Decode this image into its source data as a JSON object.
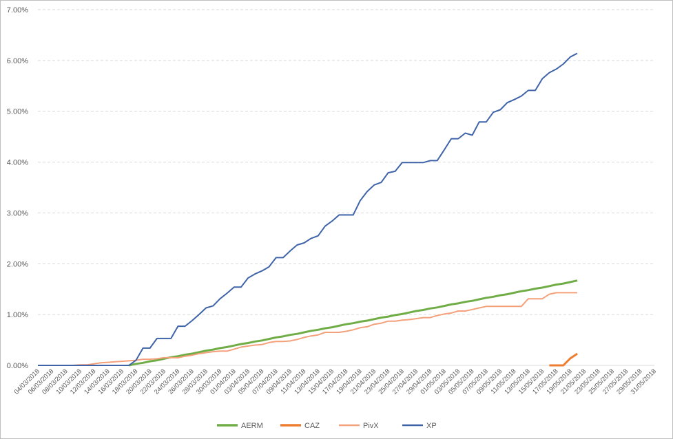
{
  "chart_data": {
    "type": "line",
    "categories": [
      "04/03/2018",
      null,
      "06/03/2018",
      null,
      "08/03/2018",
      null,
      "10/03/2018",
      null,
      "12/03/2018",
      null,
      "14/03/2018",
      null,
      "16/03/2018",
      null,
      "18/03/2018",
      null,
      "20/03/2018",
      null,
      "22/03/2018",
      null,
      "24/03/2018",
      null,
      "26/03/2018",
      null,
      "28/03/2018",
      null,
      "30/03/2018",
      null,
      "01/04/2018",
      null,
      "03/04/2018",
      null,
      "05/04/2018",
      null,
      "07/04/2018",
      null,
      "09/04/2018",
      null,
      "11/04/2018",
      null,
      "13/04/2018",
      null,
      "15/04/2018",
      null,
      "17/04/2018",
      null,
      "19/04/2018",
      null,
      "21/04/2018",
      null,
      "23/04/2018",
      null,
      "25/04/2018",
      null,
      "27/04/2018",
      null,
      "29/04/2018",
      null,
      "01/05/2018",
      null,
      "03/05/2018",
      null,
      "05/05/2018",
      null,
      "07/05/2018",
      null,
      "09/05/2018",
      null,
      "11/05/2018",
      null,
      "13/05/2018",
      null,
      "15/05/2018",
      null,
      "17/05/2018",
      null,
      "19/05/2018",
      null,
      "21/05/2018",
      null,
      "23/05/2018",
      null,
      "25/05/2018",
      null,
      "27/05/2018",
      null,
      "29/05/2018",
      null,
      "31/05/2018"
    ],
    "series": [
      {
        "name": "AERM",
        "color": "#70ad47",
        "width": 3,
        "values": [
          null,
          null,
          null,
          null,
          null,
          null,
          null,
          null,
          null,
          null,
          null,
          null,
          null,
          0,
          0.03,
          0.05,
          0.08,
          0.1,
          0.13,
          0.16,
          0.18,
          0.21,
          0.23,
          0.26,
          0.29,
          0.31,
          0.34,
          0.36,
          0.39,
          0.42,
          0.44,
          0.47,
          0.49,
          0.52,
          0.55,
          0.57,
          0.6,
          0.62,
          0.65,
          0.68,
          0.7,
          0.73,
          0.75,
          0.78,
          0.81,
          0.83,
          0.86,
          0.88,
          0.91,
          0.94,
          0.96,
          0.99,
          1.01,
          1.04,
          1.07,
          1.09,
          1.12,
          1.14,
          1.17,
          1.2,
          1.22,
          1.25,
          1.27,
          1.3,
          1.33,
          1.35,
          1.38,
          1.4,
          1.43,
          1.46,
          1.48,
          1.51,
          1.53,
          1.56,
          1.59,
          1.61,
          1.64,
          1.67,
          null,
          null,
          null,
          null,
          null,
          null,
          null,
          null,
          null,
          null,
          null
        ]
      },
      {
        "name": "CAZ",
        "color": "#ed7d31",
        "width": 3,
        "values": [
          null,
          null,
          null,
          null,
          null,
          null,
          null,
          null,
          null,
          null,
          null,
          null,
          null,
          null,
          null,
          null,
          null,
          null,
          null,
          null,
          null,
          null,
          null,
          null,
          null,
          null,
          null,
          null,
          null,
          null,
          null,
          null,
          null,
          null,
          null,
          null,
          null,
          null,
          null,
          null,
          null,
          null,
          null,
          null,
          null,
          null,
          null,
          null,
          null,
          null,
          null,
          null,
          null,
          null,
          null,
          null,
          null,
          null,
          null,
          null,
          null,
          null,
          null,
          null,
          null,
          null,
          null,
          null,
          null,
          null,
          null,
          null,
          null,
          0,
          0,
          0,
          0.14,
          0.23,
          null,
          null,
          null,
          null,
          null,
          null,
          null,
          null,
          null,
          null,
          null
        ]
      },
      {
        "name": "PivX",
        "color": "#f4a07a",
        "width": 2,
        "values": [
          0,
          0,
          0,
          0,
          0,
          0,
          0.01,
          0.01,
          0.03,
          0.05,
          0.06,
          0.07,
          0.08,
          0.09,
          0.1,
          0.12,
          0.12,
          0.13,
          0.15,
          0.15,
          0.15,
          0.18,
          0.2,
          0.23,
          0.25,
          0.27,
          0.28,
          0.28,
          0.32,
          0.36,
          0.38,
          0.4,
          0.41,
          0.45,
          0.47,
          0.47,
          0.48,
          0.51,
          0.55,
          0.58,
          0.6,
          0.65,
          0.65,
          0.65,
          0.67,
          0.7,
          0.74,
          0.76,
          0.81,
          0.83,
          0.87,
          0.87,
          0.89,
          0.9,
          0.92,
          0.94,
          0.94,
          0.98,
          1.01,
          1.03,
          1.07,
          1.07,
          1.1,
          1.13,
          1.16,
          1.16,
          1.16,
          1.16,
          1.16,
          1.16,
          1.31,
          1.31,
          1.31,
          1.4,
          1.43,
          1.43,
          1.43,
          1.43,
          null,
          null,
          null,
          null,
          null,
          null,
          null,
          null,
          null,
          null,
          null
        ]
      },
      {
        "name": "XP",
        "color": "#3f63a8",
        "width": 2,
        "values": [
          0,
          0,
          0,
          0,
          0,
          0,
          0,
          0,
          0,
          0,
          0,
          0,
          0,
          0,
          0.1,
          0.34,
          0.34,
          0.53,
          0.53,
          0.53,
          0.77,
          0.77,
          0.88,
          1.0,
          1.13,
          1.17,
          1.31,
          1.42,
          1.54,
          1.54,
          1.72,
          1.8,
          1.86,
          1.94,
          2.12,
          2.12,
          2.25,
          2.37,
          2.41,
          2.5,
          2.55,
          2.74,
          2.84,
          2.96,
          2.96,
          2.96,
          3.24,
          3.42,
          3.55,
          3.6,
          3.79,
          3.82,
          3.99,
          3.99,
          3.99,
          3.99,
          4.03,
          4.03,
          4.24,
          4.46,
          4.46,
          4.57,
          4.53,
          4.79,
          4.79,
          4.98,
          5.03,
          5.17,
          5.23,
          5.3,
          5.41,
          5.41,
          5.64,
          5.76,
          5.83,
          5.93,
          6.07,
          6.14,
          null,
          null,
          null,
          null,
          null,
          null,
          null,
          null,
          null,
          null,
          null
        ]
      }
    ],
    "ylim": [
      0,
      7
    ],
    "yticks": [
      {
        "value": 0,
        "label": "0.00%"
      },
      {
        "value": 1,
        "label": "1.00%"
      },
      {
        "value": 2,
        "label": "2.00%"
      },
      {
        "value": 3,
        "label": "3.00%"
      },
      {
        "value": 4,
        "label": "4.00%"
      },
      {
        "value": 5,
        "label": "5.00%"
      },
      {
        "value": 6,
        "label": "6.00%"
      },
      {
        "value": 7,
        "label": "7.00%"
      }
    ],
    "grid": true,
    "legend": "bottom"
  }
}
